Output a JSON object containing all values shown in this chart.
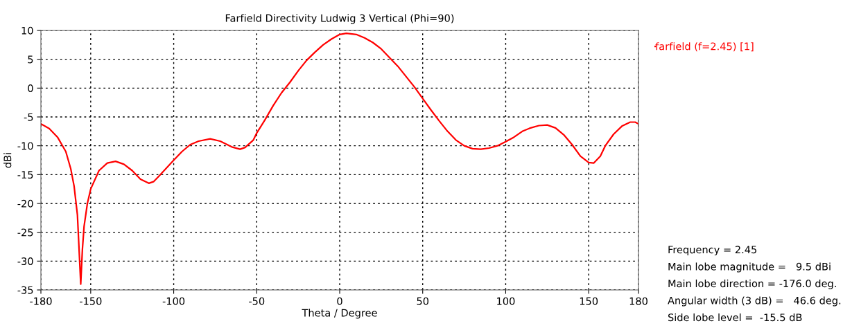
{
  "chart_data": {
    "type": "line",
    "title": "Farfield Directivity Ludwig 3 Vertical (Phi=90)",
    "xlabel": "Theta / Degree",
    "ylabel": "dBi",
    "x": [
      -180,
      -175,
      -170,
      -165,
      -162,
      -160,
      -158,
      -157,
      -156,
      -155,
      -154,
      -152,
      -150,
      -145,
      -140,
      -135,
      -130,
      -125,
      -120,
      -115,
      -112,
      -108,
      -100,
      -95,
      -90,
      -85,
      -78,
      -72,
      -65,
      -60,
      -57,
      -52,
      -50,
      -45,
      -40,
      -35,
      -30,
      -25,
      -20,
      -15,
      -10,
      -5,
      0,
      4,
      10,
      15,
      20,
      25,
      30,
      35,
      40,
      45,
      50,
      55,
      60,
      65,
      70,
      75,
      80,
      85,
      90,
      95,
      100,
      105,
      110,
      115,
      120,
      125,
      130,
      135,
      140,
      145,
      150,
      153,
      157,
      160,
      165,
      170,
      175,
      178,
      180
    ],
    "series": [
      {
        "name": "farfield (f=2.45) [1]",
        "color": "#ff0000",
        "values": [
          -6.2,
          -7,
          -8.5,
          -11,
          -14,
          -17,
          -22,
          -28,
          -34,
          -28,
          -24,
          -20,
          -17.5,
          -14.3,
          -13,
          -12.7,
          -13.2,
          -14.3,
          -15.8,
          -16.5,
          -16.2,
          -15,
          -12.5,
          -11,
          -9.8,
          -9.2,
          -8.8,
          -9.2,
          -10.2,
          -10.6,
          -10.3,
          -9,
          -7.8,
          -5.5,
          -3,
          -0.8,
          1,
          3,
          4.8,
          6.2,
          7.5,
          8.5,
          9.3,
          9.5,
          9.3,
          8.7,
          7.9,
          6.8,
          5.3,
          3.8,
          2,
          0.2,
          -1.8,
          -3.8,
          -5.7,
          -7.5,
          -9,
          -10,
          -10.5,
          -10.6,
          -10.4,
          -10,
          -9.3,
          -8.5,
          -7.5,
          -6.9,
          -6.5,
          -6.4,
          -6.9,
          -8.1,
          -9.8,
          -11.8,
          -12.9,
          -13,
          -11.8,
          -10,
          -8,
          -6.6,
          -5.9,
          -5.9,
          -6.2
        ]
      }
    ],
    "xlim": [
      -180,
      180
    ],
    "xticks": [
      -180,
      -150,
      -100,
      -50,
      0,
      50,
      100,
      150,
      180
    ],
    "ylim": [
      -35,
      10
    ],
    "yticks": [
      10,
      5,
      0,
      -5,
      -10,
      -15,
      -20,
      -25,
      -30,
      -35
    ],
    "grid": true,
    "legend": "top right",
    "line_style": "solid",
    "marker": "none",
    "annotations": [
      "Frequency = 2.45",
      "Main lobe magnitude =   9.5 dBi",
      "Main lobe direction = -176.0 deg.",
      "Angular width (3 dB) =   46.6 deg.",
      "Side lobe level =  -15.5 dB"
    ]
  }
}
